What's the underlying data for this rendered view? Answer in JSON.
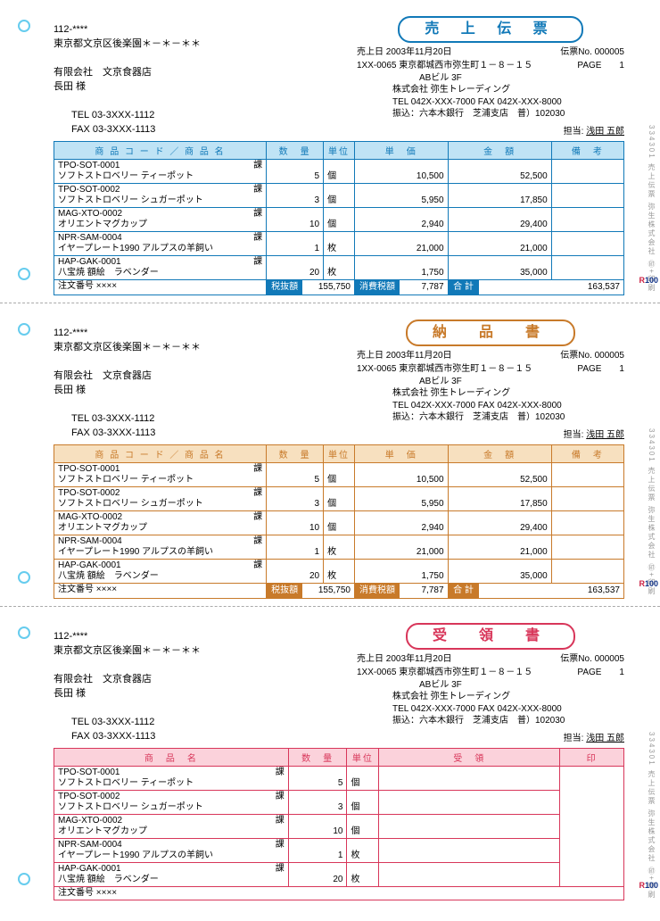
{
  "customer": {
    "postal": "112-****",
    "address": "東京都文京区後楽園＊－＊－＊＊",
    "company": "有限会社　文京食器店",
    "contact": "長田 様",
    "tel": "TEL 03-3XXX-1112",
    "fax": "FAX 03-3XXX-1113"
  },
  "vendor": {
    "slip_no_label": "伝票No.",
    "slip_no": "000005",
    "page_label": "PAGE",
    "page": "1",
    "date_label": "売上日",
    "date": "2003年11月20日",
    "postal_addr": "1XX-0065 東京都城西市弥生町１－８－１５",
    "building": "ABビル 3F",
    "company": "株式会社 弥生トレーディング",
    "telfax": "TEL 042X-XXX-7000 FAX 042X-XXX-8000",
    "bank": "振込：六本木銀行　芝浦支店　普）102030",
    "tanto_label": "担当:",
    "tanto": "浅田 五郎"
  },
  "headers": {
    "code_name": "商 品 コ ー ド ／ 商 品 名",
    "name_only": "商　品　名",
    "qty": "数　量",
    "unit": "単位",
    "price": "単　価",
    "amount": "金　額",
    "remark": "備　考",
    "receipt": "受　領",
    "stamp": "印"
  },
  "items": [
    {
      "code": "TPO-SOT-0001",
      "tax": "課",
      "name": "ソフトストロベリー ティーポット",
      "qty": "5",
      "unit": "個",
      "price": "10,500",
      "amount": "52,500"
    },
    {
      "code": "TPO-SOT-0002",
      "tax": "課",
      "name": "ソフトストロベリー シュガーポット",
      "qty": "3",
      "unit": "個",
      "price": "5,950",
      "amount": "17,850"
    },
    {
      "code": "MAG-XTO-0002",
      "tax": "課",
      "name": "オリエントマグカップ",
      "qty": "10",
      "unit": "個",
      "price": "2,940",
      "amount": "29,400"
    },
    {
      "code": "NPR-SAM-0004",
      "tax": "課",
      "name": "イヤープレート1990 アルプスの羊飼い",
      "qty": "1",
      "unit": "枚",
      "price": "21,000",
      "amount": "21,000"
    },
    {
      "code": "HAP-GAK-0001",
      "tax": "課",
      "name": "八宝焼 額絵　ラベンダー",
      "qty": "20",
      "unit": "枚",
      "price": "1,750",
      "amount": "35,000"
    }
  ],
  "totals": {
    "order_label": "注文番号",
    "order_value": "××××",
    "zeinuki_label": "税抜額",
    "zeinuki": "155,750",
    "tax_label": "消費税額",
    "tax": "7,787",
    "gokei_label": "合 計",
    "gokei": "163,537"
  },
  "forms": [
    {
      "title": "売 上 伝 票",
      "theme": "blue",
      "type": "full"
    },
    {
      "title": "納　品　書",
      "theme": "orange",
      "type": "full"
    },
    {
      "title": "受　領　書",
      "theme": "red",
      "type": "receipt"
    }
  ],
  "side_text": "334301 売上伝票 弥生株式会社 ㊞+印刷",
  "r100": {
    "r": "R",
    "n": "100"
  }
}
